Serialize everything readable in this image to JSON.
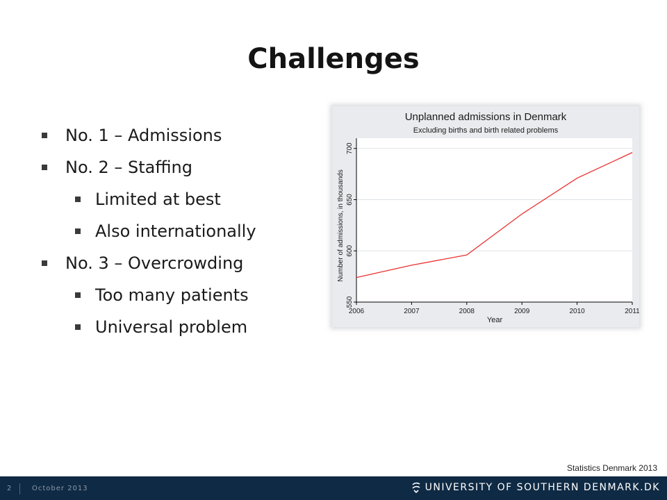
{
  "slide": {
    "title": "Challenges",
    "bullets": [
      {
        "level": 1,
        "text": "No. 1 – Admissions"
      },
      {
        "level": 1,
        "text": "No. 2 – Staffing"
      },
      {
        "level": 2,
        "text": "Limited at best"
      },
      {
        "level": 2,
        "text": "Also internationally"
      },
      {
        "level": 1,
        "text": "No. 3 – Overcrowding"
      },
      {
        "level": 2,
        "text": "Too many patients"
      },
      {
        "level": 2,
        "text": "Universal problem"
      }
    ],
    "source": "Statistics Denmark 2013"
  },
  "footer": {
    "page_number": "2",
    "date": "October 2013",
    "logo_text": "UNIVERSITY OF SOUTHERN DENMARK.DK",
    "logo_icon": "sdu-logo-icon"
  },
  "colors": {
    "footer_bg": "#0f2a44",
    "series_line": "#e8312f",
    "plot_bg": "#ffffff",
    "chart_bg": "#e9ebee"
  },
  "chart_data": {
    "type": "line",
    "title": "Unplanned admissions in Denmark",
    "subtitle": "Excluding births and birth related problems",
    "xlabel": "Year",
    "ylabel": "Number of admissions, in thousands",
    "x": [
      2006,
      2007,
      2008,
      2009,
      2010,
      2011
    ],
    "x_ticks": [
      "2006",
      "2007",
      "2008",
      "2009",
      "2010",
      "2011"
    ],
    "y_ticks": [
      "550",
      "600",
      "650",
      "700"
    ],
    "ylim": [
      550,
      710
    ],
    "series": [
      {
        "values": [
          574,
          586,
          596,
          636,
          671,
          696
        ]
      }
    ],
    "grid": true,
    "legend": "none"
  }
}
